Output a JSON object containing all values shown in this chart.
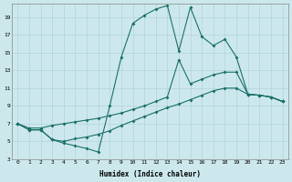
{
  "xlabel": "Humidex (Indice chaleur)",
  "background_color": "#cce8ed",
  "grid_color": "#aacfd8",
  "line_color": "#1a7068",
  "xlim": [
    -0.5,
    23.5
  ],
  "ylim": [
    3,
    20.5
  ],
  "xticks": [
    0,
    1,
    2,
    3,
    4,
    5,
    6,
    7,
    8,
    9,
    10,
    11,
    12,
    13,
    14,
    15,
    16,
    17,
    18,
    19,
    20,
    21,
    22,
    23
  ],
  "yticks": [
    3,
    5,
    7,
    9,
    11,
    13,
    15,
    17,
    19
  ],
  "line1": {
    "x": [
      0,
      1,
      2,
      3,
      4,
      5,
      6,
      7,
      8,
      9,
      10,
      11,
      12,
      13,
      14,
      15,
      16,
      17,
      18,
      19,
      20,
      21,
      22,
      23
    ],
    "y": [
      7.0,
      6.3,
      6.3,
      5.2,
      4.8,
      4.5,
      4.2,
      3.8,
      9.0,
      14.5,
      18.3,
      19.2,
      19.9,
      20.3,
      15.2,
      20.1,
      16.8,
      15.8,
      16.5,
      14.5,
      10.3,
      10.2,
      10.0,
      9.5
    ]
  },
  "line2": {
    "x": [
      0,
      1,
      2,
      3,
      4,
      5,
      6,
      7,
      8,
      9,
      10,
      11,
      12,
      13,
      14,
      15,
      16,
      17,
      18,
      19,
      20,
      21,
      22,
      23
    ],
    "y": [
      7.0,
      6.5,
      6.5,
      6.8,
      7.0,
      7.2,
      7.4,
      7.6,
      7.9,
      8.2,
      8.6,
      9.0,
      9.5,
      10.0,
      14.2,
      11.5,
      12.0,
      12.5,
      12.8,
      12.8,
      10.3,
      10.2,
      10.0,
      9.5
    ]
  },
  "line3": {
    "x": [
      0,
      1,
      2,
      3,
      4,
      5,
      6,
      7,
      8,
      9,
      10,
      11,
      12,
      13,
      14,
      15,
      16,
      17,
      18,
      19,
      20,
      21,
      22,
      23
    ],
    "y": [
      7.0,
      6.3,
      6.3,
      5.2,
      5.0,
      5.3,
      5.5,
      5.8,
      6.2,
      6.8,
      7.3,
      7.8,
      8.3,
      8.8,
      9.2,
      9.7,
      10.2,
      10.7,
      11.0,
      11.0,
      10.3,
      10.2,
      10.0,
      9.5
    ]
  }
}
